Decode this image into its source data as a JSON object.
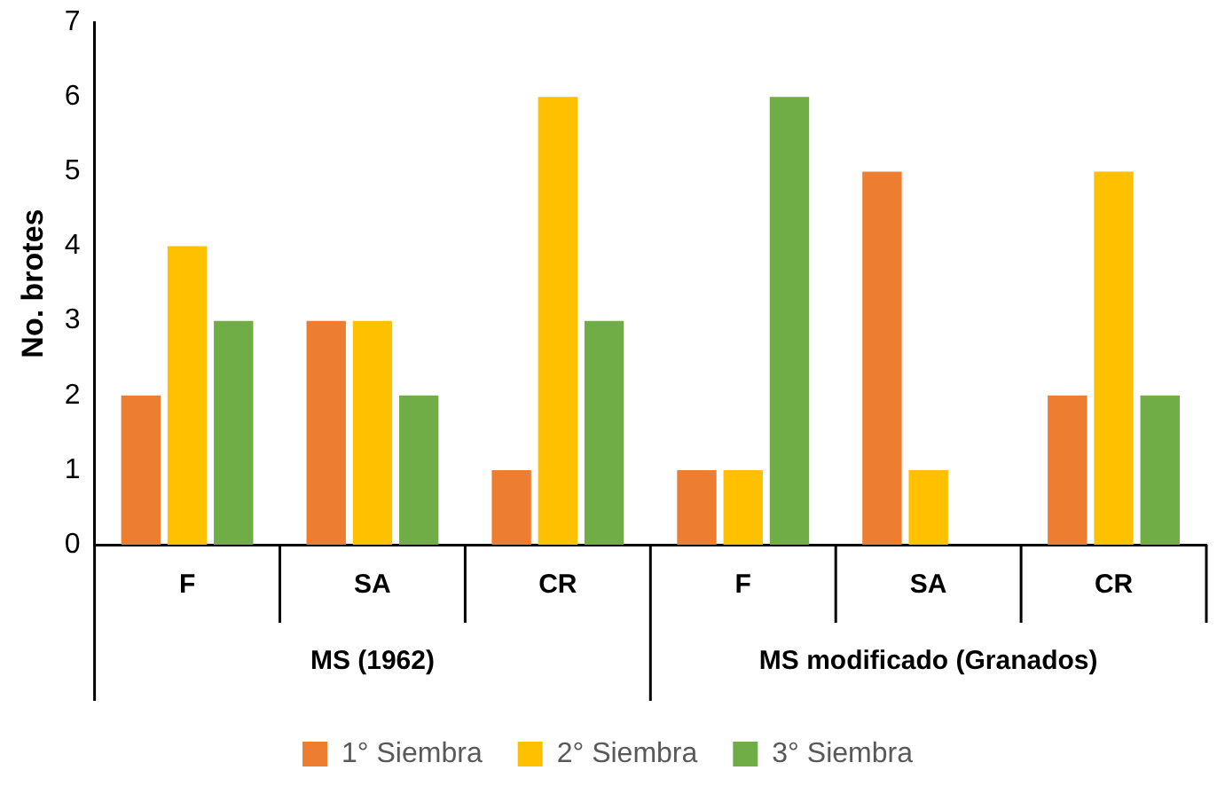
{
  "chart_data": {
    "type": "bar",
    "ylabel": "No. brotes",
    "categories": [
      "F",
      "SA",
      "CR",
      "F",
      "SA",
      "CR"
    ],
    "series": [
      {
        "name": "1° Siembra",
        "color": "#ed7d31",
        "values": [
          2,
          3,
          1,
          1,
          5,
          2
        ]
      },
      {
        "name": "2° Siembra",
        "color": "#ffc000",
        "values": [
          4,
          3,
          6,
          1,
          1,
          5
        ]
      },
      {
        "name": "3° Siembra",
        "color": "#70ad47",
        "values": [
          3,
          2,
          3,
          6,
          0,
          2
        ]
      }
    ],
    "annotations": [
      "MS (1962)",
      "MS modificado (Granados)"
    ],
    "ylim": [
      0,
      7
    ],
    "yticks": [
      0,
      1,
      2,
      3,
      4,
      5,
      6,
      7
    ],
    "grid": false,
    "legend": "bottom"
  }
}
